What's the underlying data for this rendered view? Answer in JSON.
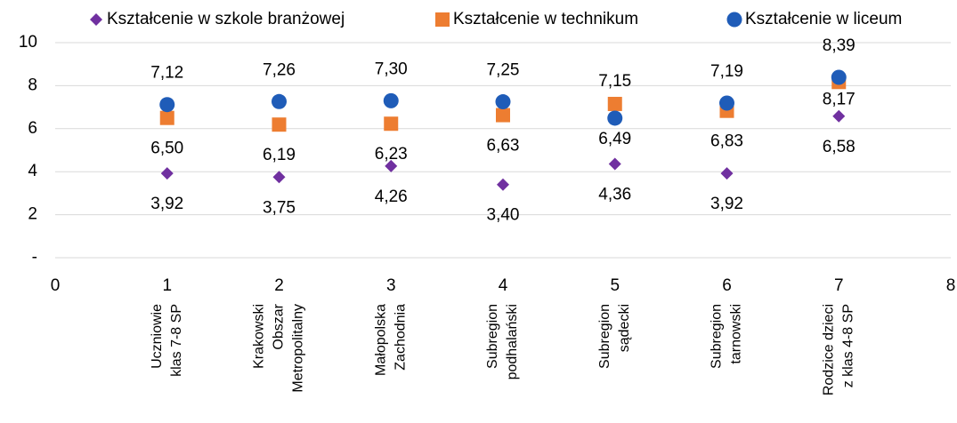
{
  "chart_data": {
    "type": "scatter",
    "x": [
      1,
      2,
      3,
      4,
      5,
      6,
      7
    ],
    "category_labels": [
      [
        "Uczniowie",
        "klas 7-8 SP"
      ],
      [
        "Krakowski",
        "Obszar",
        "Metropolitalny"
      ],
      [
        "Małopolska",
        "Zachodnia"
      ],
      [
        "Subregion",
        "podhalański"
      ],
      [
        "Subregion",
        "sądecki"
      ],
      [
        "Subregion",
        "tarnowski"
      ],
      [
        "Rodzice dzieci",
        "z klas 4-8 SP"
      ]
    ],
    "series": [
      {
        "name": "Kształcenie w szkole branżowej",
        "color": "#7030a0",
        "marker": "diamond",
        "values": [
          3.92,
          3.75,
          4.26,
          3.4,
          4.36,
          3.92,
          6.58
        ],
        "value_labels": [
          "3,92",
          "3,75",
          "4,26",
          "3,40",
          "4,36",
          "3,92",
          "6,58"
        ]
      },
      {
        "name": "Kształcenie w technikum",
        "color": "#ed7d31",
        "marker": "square",
        "values": [
          6.5,
          6.19,
          6.23,
          6.63,
          7.15,
          6.83,
          8.17
        ],
        "value_labels": [
          "6,50",
          "6,19",
          "6,23",
          "6,63",
          "7,15",
          "6,83",
          "8,17"
        ]
      },
      {
        "name": "Kształcenie w liceum",
        "color": "#1f5cb8",
        "marker": "circle",
        "values": [
          7.12,
          7.26,
          7.3,
          7.25,
          6.49,
          7.19,
          8.39
        ],
        "value_labels": [
          "7,12",
          "7,26",
          "7,30",
          "7,25",
          "6,49",
          "7,19",
          "8,39"
        ]
      }
    ],
    "xlim": [
      0,
      8
    ],
    "xticks": [
      0,
      1,
      2,
      3,
      4,
      5,
      6,
      7,
      8
    ],
    "ylim": [
      0,
      10
    ],
    "yticks": [
      {
        "value": 0,
        "label": "-"
      },
      2,
      4,
      6,
      8,
      10
    ],
    "grid": true,
    "legend": "top"
  }
}
